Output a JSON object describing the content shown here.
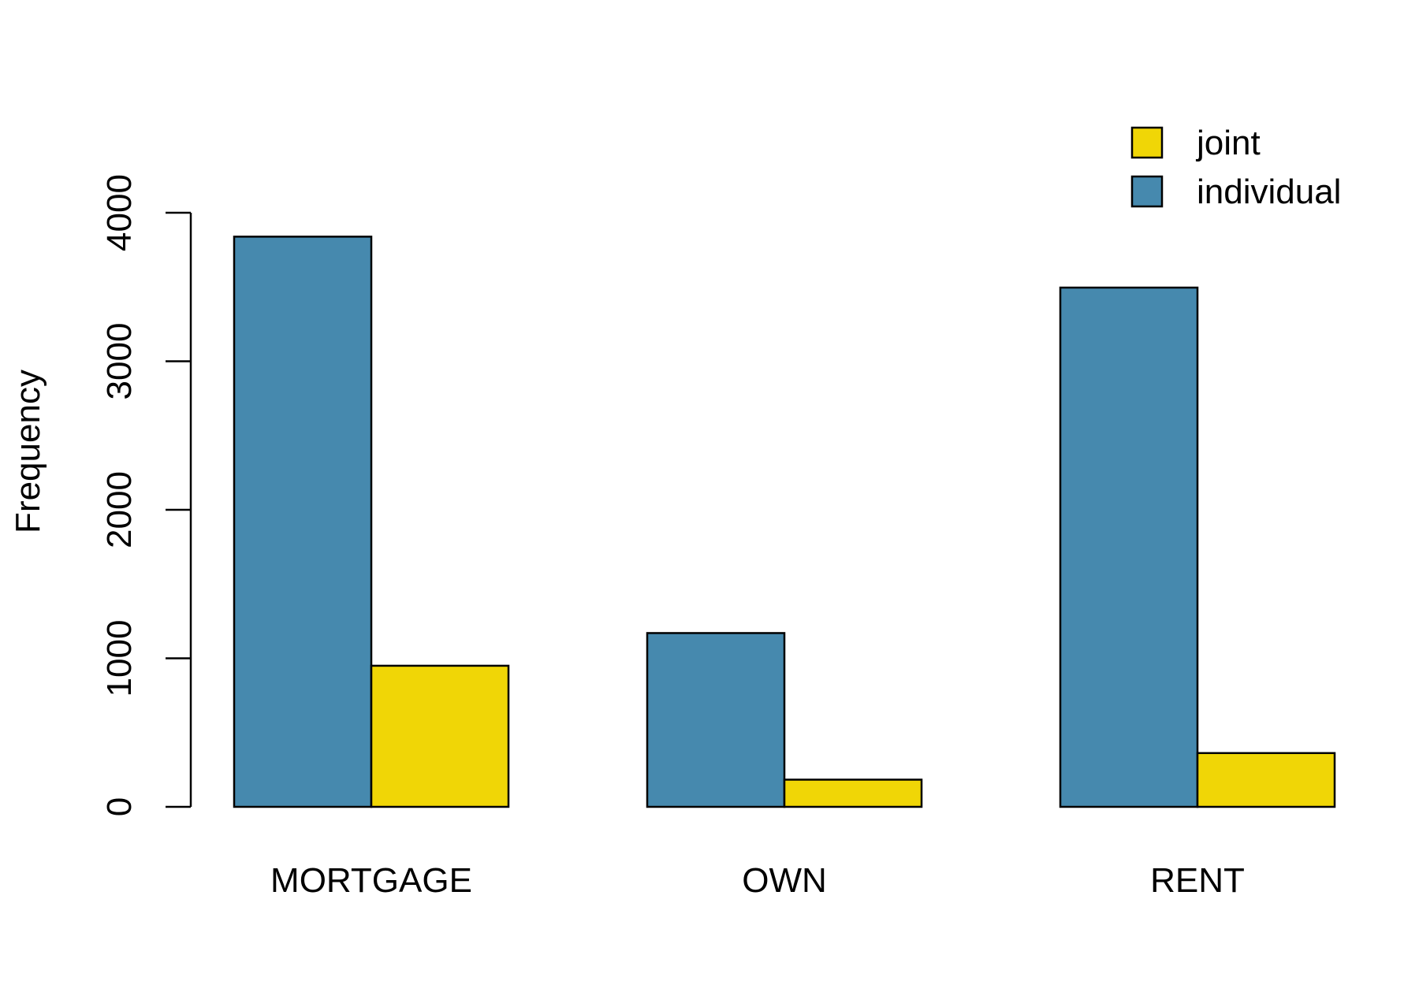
{
  "chart_data": {
    "type": "bar",
    "title": "",
    "xlabel": "",
    "ylabel": "Frequency",
    "categories": [
      "MORTGAGE",
      "OWN",
      "RENT"
    ],
    "series": [
      {
        "name": "individual",
        "color": "#4689ae",
        "values": [
          3839,
          1170,
          3496
        ]
      },
      {
        "name": "joint",
        "color": "#f0d606",
        "values": [
          950,
          183,
          362
        ]
      }
    ],
    "ylim": [
      0,
      4000
    ],
    "yticks": [
      0,
      1000,
      2000,
      3000,
      4000
    ],
    "ytick_labels": [
      "0",
      "1000",
      "2000",
      "3000",
      "4000"
    ],
    "grid": false,
    "legend": {
      "position": "top-right",
      "entries": [
        {
          "label": "joint",
          "color": "#f0d606"
        },
        {
          "label": "individual",
          "color": "#4689ae"
        }
      ]
    }
  }
}
